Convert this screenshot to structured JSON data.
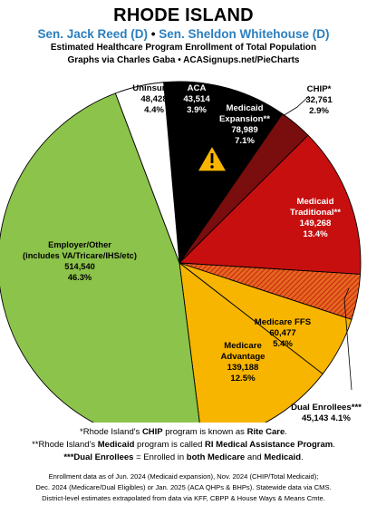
{
  "header": {
    "title": "RHODE ISLAND",
    "senator1": "Sen. Jack Reed (D)",
    "bullet": " • ",
    "senator2": "Sen. Sheldon Whitehouse (D)",
    "subtitle1": "Estimated Healthcare Program Enrollment of Total Population",
    "subtitle2": "Graphs via Charles Gaba  •  ACASignups.net/PieCharts"
  },
  "chart_data": {
    "type": "pie",
    "start_angle_deg": -5,
    "direction": "clockwise",
    "slices": [
      {
        "label": "ACA",
        "value": 43514,
        "value_text": "43,514",
        "percent": "3.9%",
        "color": "#000000",
        "text_color": "#ffffff"
      },
      {
        "label": "Medicaid Expansion**",
        "value": 78989,
        "value_text": "78,989",
        "percent": "7.1%",
        "color": "#000000",
        "text_color": "#ffffff"
      },
      {
        "label": "CHIP*",
        "value": 32761,
        "value_text": "32,761",
        "percent": "2.9%",
        "color": "#7a0d0d",
        "text_color": "#000000"
      },
      {
        "label": "Medicaid Traditional**",
        "value": 149268,
        "value_text": "149,268",
        "percent": "13.4%",
        "color": "#c80f0f",
        "text_color": "#ffffff"
      },
      {
        "label": "Dual Enrollees***",
        "value": 45143,
        "value_text": "45,143",
        "percent": "4.1%",
        "color": "#e3681f",
        "text_color": "#000000",
        "hatched": true
      },
      {
        "label": "Medicare FFS",
        "value": 60477,
        "value_text": "60,477",
        "percent": "5.4%",
        "color": "#f7b500",
        "text_color": "#000000"
      },
      {
        "label": "Medicare Advantage",
        "value": 139188,
        "value_text": "139,188",
        "percent": "12.5%",
        "color": "#f7b500",
        "text_color": "#000000"
      },
      {
        "label": "Employer/Other (includes VA/Tricare/IHS/etc)",
        "value": 514540,
        "value_text": "514,540",
        "percent": "46.3%",
        "color": "#8cc34a",
        "text_color": "#000000"
      },
      {
        "label": "Uninsured",
        "value": 48428,
        "value_text": "48,428",
        "percent": "4.4%",
        "color": "#ffffff",
        "text_color": "#000000"
      }
    ],
    "labels": [
      {
        "lines": [
          "ACA",
          "43,514",
          "3.9%"
        ],
        "fill": "#ffffff"
      },
      {
        "lines": [
          "Medicaid",
          "Expansion**",
          "78,989",
          "7.1%"
        ],
        "fill": "#ffffff"
      },
      {
        "lines": [
          "CHIP*",
          "32,761",
          "2.9%"
        ],
        "fill": "#000000"
      },
      {
        "lines": [
          "Medicaid",
          "Traditional**",
          "149,268",
          "13.4%"
        ],
        "fill": "#ffffff"
      },
      {
        "lines": [
          "Dual Enrollees***",
          "45,143 4.1%"
        ],
        "fill": "#000000"
      },
      {
        "lines": [
          "Medicare FFS",
          "60,477",
          "5.4%"
        ],
        "fill": "#000000"
      },
      {
        "lines": [
          "Medicare",
          "Advantage",
          "139,188",
          "12.5%"
        ],
        "fill": "#000000"
      },
      {
        "lines": [
          "Employer/Other",
          "(includes VA/Tricare/IHS/etc)",
          "514,540",
          "46.3%"
        ],
        "fill": "#000000"
      },
      {
        "lines": [
          "Uninsured",
          "48,428",
          "4.4%"
        ],
        "fill": "#000000"
      }
    ],
    "warning_icon": "warning-triangle-icon",
    "legend": "none"
  },
  "footnotes": {
    "chip_a": "*Rhode Island's ",
    "chip_b": "CHIP",
    "chip_c": " program is known as ",
    "chip_d": "Rite Care",
    "chip_e": ".",
    "medicaid_a": "**Rhode Island's ",
    "medicaid_b": "Medicaid",
    "medicaid_c": " program is called ",
    "medicaid_d": "RI Medical Assistance Program",
    "medicaid_e": ".",
    "dual_a": "***Dual Enrollees",
    "dual_b": " = Enrolled in ",
    "dual_c": "both Medicare",
    "dual_d": " and ",
    "dual_e": "Medicaid",
    "dual_f": "."
  },
  "sources": {
    "line1": "Enrollment data as of Jun. 2024 (Medicaid expansion), Nov. 2024 (CHIP/Total Medicaid);",
    "line2": "Dec. 2024 (Medicare/Dual Eligibles) or Jan. 2025 (ACA QHPs & BHPs). Statewide data via CMS.",
    "line3": "District-level estimates extrapolated from data via KFF, CBPP & House Ways & Means Cmte."
  }
}
